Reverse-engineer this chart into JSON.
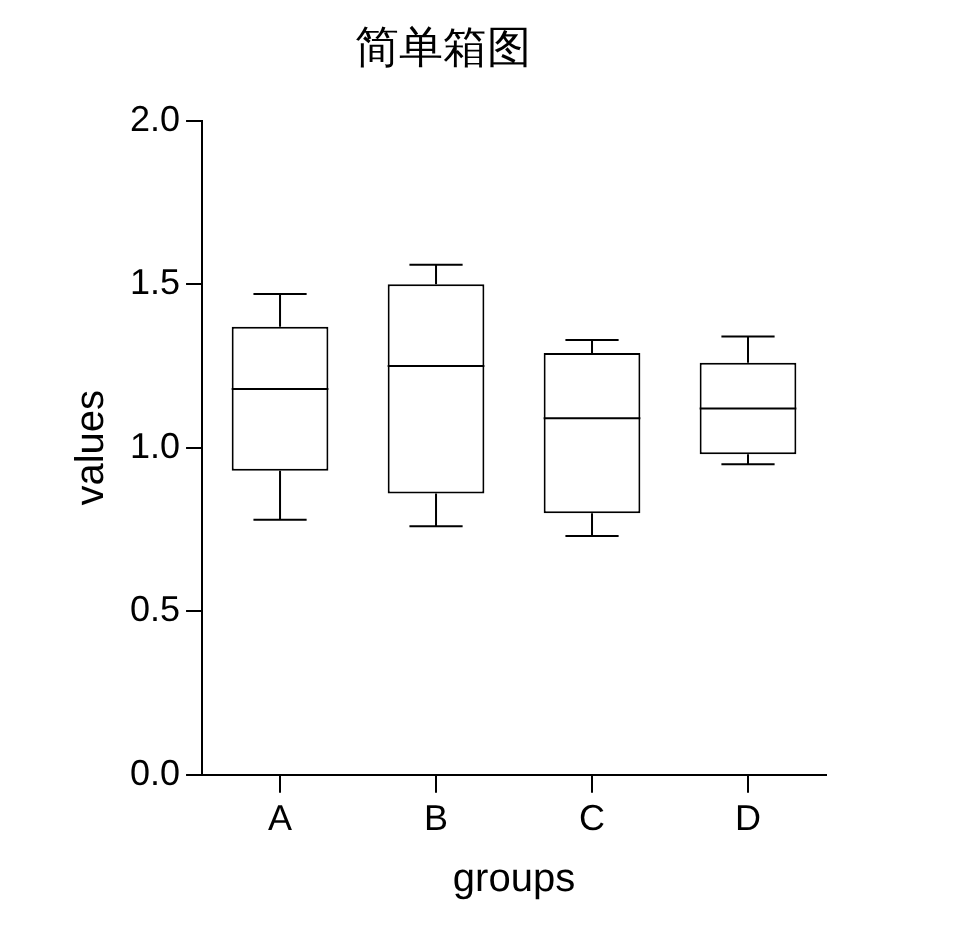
{
  "chart_data": {
    "type": "box",
    "title": "简单箱图",
    "xlabel": "groups",
    "ylabel": "values",
    "categories": [
      "A",
      "B",
      "C",
      "D"
    ],
    "boxes": [
      {
        "low": 0.78,
        "q1": 0.93,
        "median": 1.18,
        "q3": 1.37,
        "high": 1.47
      },
      {
        "low": 0.76,
        "q1": 0.86,
        "median": 1.25,
        "q3": 1.5,
        "high": 1.56
      },
      {
        "low": 0.73,
        "q1": 0.8,
        "median": 1.09,
        "q3": 1.29,
        "high": 1.33
      },
      {
        "low": 0.95,
        "q1": 0.98,
        "median": 1.12,
        "q3": 1.26,
        "high": 1.34
      }
    ],
    "color": "#000000",
    "ylim": [
      0,
      2
    ],
    "yticks": [
      {
        "value": 0,
        "label": "0.0"
      },
      {
        "value": 0.5,
        "label": "0.5"
      },
      {
        "value": 1,
        "label": "1.0"
      },
      {
        "value": 1.5,
        "label": "1.5"
      },
      {
        "value": 2,
        "label": "2.0"
      }
    ],
    "grid": false,
    "legend": false
  }
}
